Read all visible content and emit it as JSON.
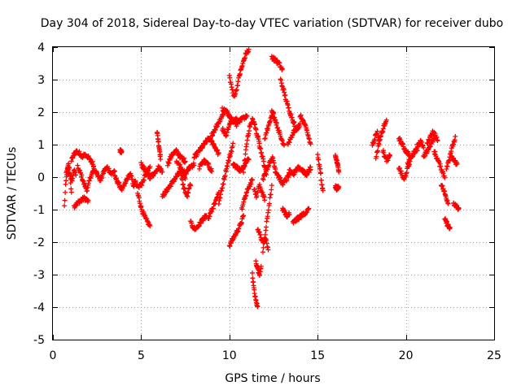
{
  "chart_data": {
    "type": "scatter",
    "title": "Day 304 of 2018, Sidereal Day-to-day VTEC variation (SDTVAR) for receiver dubo",
    "xlabel": "GPS time / hours",
    "ylabel": "SDTVAR / TECUs",
    "xlim": [
      0,
      25
    ],
    "ylim": [
      -5,
      4
    ],
    "xticks": [
      0,
      5,
      10,
      15,
      20,
      25
    ],
    "yticks": [
      -5,
      -4,
      -3,
      -2,
      -1,
      0,
      1,
      2,
      3,
      4
    ],
    "grid": true,
    "marker": "+",
    "color": "#ff0000",
    "series": [
      {
        "name": "SDTVAR",
        "segments": [
          {
            "x0": 0.65,
            "x1": 1.05,
            "y": [
              -0.9,
              -0.2,
              0.2,
              0.4,
              0.1,
              -0.5
            ]
          },
          {
            "x0": 0.75,
            "x1": 1.3,
            "y": [
              0.1,
              0.3,
              0.0,
              -0.1,
              0.2,
              0.1
            ]
          },
          {
            "x0": 1.05,
            "x1": 1.6,
            "y": [
              0.5,
              0.7,
              0.8,
              0.75,
              0.7
            ]
          },
          {
            "x0": 1.2,
            "x1": 2.0,
            "y": [
              -0.9,
              -0.8,
              -0.7,
              -0.65,
              -0.75
            ]
          },
          {
            "x0": 1.4,
            "x1": 2.3,
            "y": [
              0.3,
              0.1,
              -0.2,
              -0.4,
              0.0,
              0.2
            ]
          },
          {
            "x0": 1.6,
            "x1": 2.3,
            "y": [
              0.6,
              0.7,
              0.65,
              0.5,
              0.4
            ]
          },
          {
            "x0": 2.3,
            "x1": 3.5,
            "y": [
              0.3,
              0.1,
              -0.1,
              0.2,
              0.3,
              0.1,
              0.2
            ]
          },
          {
            "x0": 3.5,
            "x1": 4.6,
            "y": [
              0.0,
              -0.2,
              -0.4,
              -0.1,
              0.1,
              -0.3
            ]
          },
          {
            "x0": 3.8,
            "x1": 3.9,
            "y": [
              0.8,
              0.8
            ]
          },
          {
            "x0": 4.6,
            "x1": 5.5,
            "y": [
              -0.1,
              -0.3,
              -0.2,
              0.1,
              0.3
            ]
          },
          {
            "x0": 4.8,
            "x1": 5.5,
            "y": [
              -0.5,
              -1.0,
              -1.3,
              -1.5
            ]
          },
          {
            "x0": 5.0,
            "x1": 6.2,
            "y": [
              0.4,
              0.2,
              0.0,
              0.1,
              0.3,
              0.2
            ]
          },
          {
            "x0": 5.9,
            "x1": 6.1,
            "y": [
              1.4,
              1.0,
              0.6
            ]
          },
          {
            "x0": 6.2,
            "x1": 7.5,
            "y": [
              -0.6,
              -0.4,
              -0.2,
              0.0,
              0.2,
              0.0
            ]
          },
          {
            "x0": 6.5,
            "x1": 7.5,
            "y": [
              0.4,
              0.7,
              0.8,
              0.6,
              0.5
            ]
          },
          {
            "x0": 7.0,
            "x1": 8.0,
            "y": [
              0.5,
              0.3,
              0.1,
              0.3,
              0.4
            ]
          },
          {
            "x0": 7.2,
            "x1": 7.8,
            "y": [
              0.2,
              -0.3,
              -0.6,
              -0.2
            ]
          },
          {
            "x0": 7.8,
            "x1": 8.7,
            "y": [
              -1.4,
              -1.6,
              -1.5,
              -1.3,
              -1.2
            ]
          },
          {
            "x0": 8.0,
            "x1": 9.4,
            "y": [
              0.6,
              0.8,
              1.0,
              1.2,
              1.0,
              0.7
            ]
          },
          {
            "x0": 8.3,
            "x1": 9.0,
            "y": [
              0.3,
              0.5,
              0.4,
              0.2
            ]
          },
          {
            "x0": 8.8,
            "x1": 9.4,
            "y": [
              -1.3,
              -1.0,
              -0.8,
              -0.5
            ]
          },
          {
            "x0": 9.0,
            "x1": 9.8,
            "y": [
              1.3,
              1.5,
              1.7,
              1.9,
              2.1
            ]
          },
          {
            "x0": 9.4,
            "x1": 10.2,
            "y": [
              -0.8,
              -0.3,
              0.2,
              0.6,
              1.0
            ]
          },
          {
            "x0": 9.6,
            "x1": 10.4,
            "y": [
              2.1,
              2.0,
              1.8,
              1.6
            ]
          },
          {
            "x0": 9.6,
            "x1": 10.2,
            "y": [
              1.5,
              1.3,
              1.6,
              1.8
            ]
          },
          {
            "x0": 10.0,
            "x1": 10.8,
            "y": [
              -2.1,
              -1.9,
              -1.7,
              -1.5,
              -1.2
            ]
          },
          {
            "x0": 10.2,
            "x1": 11.1,
            "y": [
              0.4,
              0.3,
              0.2,
              0.4,
              0.6
            ]
          },
          {
            "x0": 10.3,
            "x1": 11.0,
            "y": [
              1.8,
              1.7,
              1.8,
              1.9
            ]
          },
          {
            "x0": 10.7,
            "x1": 11.3,
            "y": [
              -1.0,
              -0.6,
              -0.3,
              -0.1
            ]
          },
          {
            "x0": 10.8,
            "x1": 11.3,
            "y": [
              0.2,
              0.8,
              1.3,
              1.6,
              1.7
            ]
          },
          {
            "x0": 10.0,
            "x1": 10.6,
            "y": [
              3.1,
              2.8,
              2.5,
              2.6,
              2.9,
              3.2
            ]
          },
          {
            "x0": 10.6,
            "x1": 11.1,
            "y": [
              3.2,
              3.5,
              3.8,
              3.9
            ]
          },
          {
            "x0": 11.3,
            "x1": 11.7,
            "y": [
              1.8,
              1.6,
              1.3,
              1.1
            ]
          },
          {
            "x0": 11.3,
            "x1": 11.6,
            "y": [
              -3.0,
              -3.5,
              -3.8,
              -4.0
            ]
          },
          {
            "x0": 11.5,
            "x1": 11.8,
            "y": [
              -2.6,
              -2.8,
              -3.0,
              -2.7
            ]
          },
          {
            "x0": 11.4,
            "x1": 12.0,
            "y": [
              -0.4,
              -0.6,
              -0.2,
              -0.5,
              -0.7
            ]
          },
          {
            "x0": 11.6,
            "x1": 12.2,
            "y": [
              -1.6,
              -1.8,
              -2.0,
              -1.9,
              -2.2
            ]
          },
          {
            "x0": 11.9,
            "x1": 12.4,
            "y": [
              -2.3,
              -1.6,
              -0.9,
              -0.3
            ]
          },
          {
            "x0": 11.9,
            "x1": 12.6,
            "y": [
              -0.1,
              0.2,
              0.4,
              0.6,
              0.3
            ]
          },
          {
            "x0": 11.7,
            "x1": 12.1,
            "y": [
              1.0,
              0.7,
              0.4,
              0.1
            ]
          },
          {
            "x0": 12.0,
            "x1": 12.5,
            "y": [
              1.2,
              1.5,
              1.8,
              2.0
            ]
          },
          {
            "x0": 12.4,
            "x1": 13.0,
            "y": [
              3.7,
              3.6,
              3.5,
              3.3
            ]
          },
          {
            "x0": 12.9,
            "x1": 13.7,
            "y": [
              3.0,
              2.6,
              2.2,
              1.9,
              1.6
            ]
          },
          {
            "x0": 12.4,
            "x1": 13.1,
            "y": [
              2.0,
              1.8,
              1.5,
              1.2,
              1.0
            ]
          },
          {
            "x0": 12.6,
            "x1": 13.4,
            "y": [
              0.2,
              0.0,
              -0.2,
              -0.1,
              0.1
            ]
          },
          {
            "x0": 13.0,
            "x1": 13.4,
            "y": [
              -1.0,
              -1.1,
              -1.2,
              -1.1
            ]
          },
          {
            "x0": 13.3,
            "x1": 14.0,
            "y": [
              1.0,
              1.2,
              1.4,
              1.5,
              1.6
            ]
          },
          {
            "x0": 13.4,
            "x1": 14.6,
            "y": [
              0.2,
              0.1,
              0.3,
              0.2,
              0.1,
              0.2
            ]
          },
          {
            "x0": 13.6,
            "x1": 14.5,
            "y": [
              -1.4,
              -1.3,
              -1.2,
              -1.1,
              -1.0
            ]
          },
          {
            "x0": 14.0,
            "x1": 14.6,
            "y": [
              1.9,
              1.7,
              1.4,
              1.0
            ]
          },
          {
            "x0": 14.1,
            "x1": 14.6,
            "y": [
              0.2,
              0.1,
              0.3
            ]
          },
          {
            "x0": 15.0,
            "x1": 15.3,
            "y": [
              0.7,
              0.4,
              0.2,
              -0.2,
              -0.4
            ]
          },
          {
            "x0": 16.0,
            "x1": 16.2,
            "y": [
              0.7,
              0.5,
              0.4,
              0.2
            ]
          },
          {
            "x0": 16.0,
            "x1": 16.2,
            "y": [
              -0.3,
              -0.35,
              -0.3
            ]
          },
          {
            "x0": 18.1,
            "x1": 18.5,
            "y": [
              1.0,
              1.2,
              1.4,
              1.1
            ]
          },
          {
            "x0": 18.3,
            "x1": 18.9,
            "y": [
              0.6,
              0.9,
              1.2,
              1.4,
              1.6,
              1.8
            ]
          },
          {
            "x0": 18.7,
            "x1": 19.1,
            "y": [
              0.8,
              0.6,
              0.5,
              0.7
            ]
          },
          {
            "x0": 19.6,
            "x1": 20.2,
            "y": [
              0.3,
              0.1,
              -0.1,
              0.2,
              0.4
            ]
          },
          {
            "x0": 19.6,
            "x1": 20.2,
            "y": [
              1.2,
              1.0,
              0.8,
              0.7
            ]
          },
          {
            "x0": 20.1,
            "x1": 20.7,
            "y": [
              0.4,
              0.6,
              0.8,
              0.9
            ]
          },
          {
            "x0": 20.5,
            "x1": 21.0,
            "y": [
              0.8,
              1.0,
              1.1,
              0.9
            ]
          },
          {
            "x0": 21.0,
            "x1": 21.6,
            "y": [
              0.6,
              0.8,
              1.0,
              1.2
            ]
          },
          {
            "x0": 21.2,
            "x1": 21.8,
            "y": [
              1.0,
              1.2,
              1.4,
              1.3,
              1.1
            ]
          },
          {
            "x0": 21.6,
            "x1": 22.2,
            "y": [
              0.8,
              0.6,
              0.4,
              0.2,
              0.0
            ]
          },
          {
            "x0": 22.0,
            "x1": 22.4,
            "y": [
              -0.2,
              -0.4,
              -0.6,
              -0.8
            ]
          },
          {
            "x0": 22.3,
            "x1": 22.8,
            "y": [
              0.3,
              0.5,
              0.8,
              1.0,
              1.2
            ]
          },
          {
            "x0": 22.2,
            "x1": 22.5,
            "y": [
              -1.3,
              -1.4,
              -1.5,
              -1.6
            ]
          },
          {
            "x0": 22.6,
            "x1": 22.9,
            "y": [
              0.6,
              0.5,
              0.4
            ]
          },
          {
            "x0": 22.7,
            "x1": 23.0,
            "y": [
              -0.8,
              -0.9,
              -1.0
            ]
          }
        ]
      }
    ]
  }
}
